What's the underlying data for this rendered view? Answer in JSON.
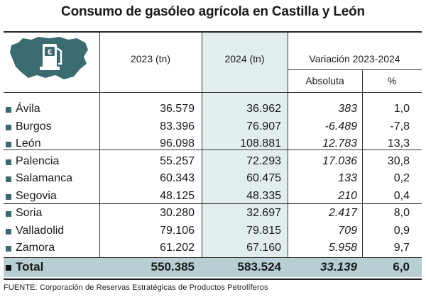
{
  "title": "Consumo de gasóleo agrícola en Castilla y León",
  "headers": {
    "y2023": "2023 (tn)",
    "y2024": "2024 (tn)",
    "variation": "Variación 2023-2024",
    "absolute": "Absoluta",
    "percent": "%"
  },
  "logo": {
    "icon": "fuel-pump-map-icon",
    "symbol": "€"
  },
  "chart_data": {
    "type": "table",
    "title": "Consumo de gasóleo agrícola en Castilla y León",
    "columns": [
      "",
      "2023 (tn)",
      "2024 (tn)",
      "Absoluta",
      "%"
    ],
    "rows": [
      {
        "province": "Ávila",
        "y2023": "36.579",
        "y2024": "36.962",
        "abs": "383",
        "pct": "1,0"
      },
      {
        "province": "Burgos",
        "y2023": "83.396",
        "y2024": "76.907",
        "abs": "-6.489",
        "pct": "-7,8"
      },
      {
        "province": "León",
        "y2023": "96.098",
        "y2024": "108.881",
        "abs": "12.783",
        "pct": "13,3"
      },
      {
        "province": "Palencia",
        "y2023": "55.257",
        "y2024": "72.293",
        "abs": "17.036",
        "pct": "30,8"
      },
      {
        "province": "Salamanca",
        "y2023": "60.343",
        "y2024": "60.475",
        "abs": "133",
        "pct": "0,2"
      },
      {
        "province": "Segovia",
        "y2023": "48.125",
        "y2024": "48.335",
        "abs": "210",
        "pct": "0,4"
      },
      {
        "province": "Soria",
        "y2023": "30.280",
        "y2024": "32.697",
        "abs": "2.417",
        "pct": "8,0"
      },
      {
        "province": "Valladolid",
        "y2023": "79.106",
        "y2024": "79.815",
        "abs": "709",
        "pct": "0,9"
      },
      {
        "province": "Zamora",
        "y2023": "61.202",
        "y2024": "67.160",
        "abs": "5.958",
        "pct": "9,7"
      }
    ],
    "total": {
      "label": "Total",
      "y2023": "550.385",
      "y2024": "583.524",
      "abs": "33.139",
      "pct": "6,0"
    }
  },
  "source": "FUENTE: Corporación de Reservas Estratégicas de Productos Petrolíferos",
  "colors": {
    "highlight_column": "#e2eeee",
    "total_row": "#b7cfd2",
    "bullet": "#3a6b70"
  }
}
